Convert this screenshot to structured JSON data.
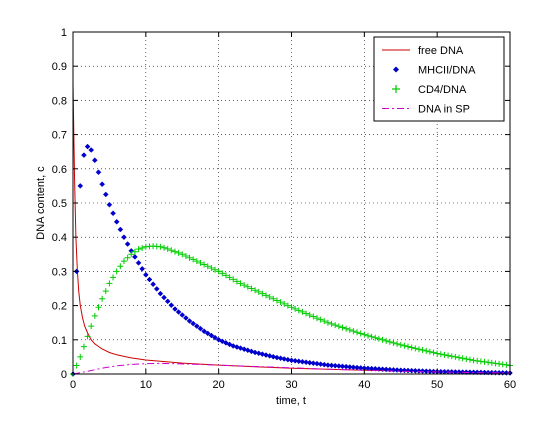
{
  "chart_data": {
    "type": "line",
    "title": "",
    "xlabel": "time, t",
    "ylabel": "DNA content, c",
    "xlim": [
      0,
      60
    ],
    "ylim": [
      0,
      1
    ],
    "xticks": [
      "0",
      "10",
      "20",
      "30",
      "40",
      "50",
      "60"
    ],
    "yticks": [
      "0",
      "0.1",
      "0.2",
      "0.3",
      "0.4",
      "0.5",
      "0.6",
      "0.7",
      "0.8",
      "0.9",
      "1"
    ],
    "grid": true,
    "legend_position": "top-right",
    "series": [
      {
        "name": "free DNA",
        "style": "solid-line",
        "color": "#cc0000",
        "x": [
          0,
          0.2,
          0.4,
          0.6,
          0.8,
          1.0,
          1.3,
          1.6,
          2.0,
          2.5,
          3,
          4,
          5,
          6,
          8,
          10,
          12,
          15,
          20,
          25,
          30,
          35,
          40,
          45,
          50,
          55,
          60
        ],
        "y": [
          0.85,
          0.58,
          0.4,
          0.3,
          0.24,
          0.2,
          0.165,
          0.14,
          0.12,
          0.1,
          0.088,
          0.073,
          0.063,
          0.056,
          0.047,
          0.041,
          0.037,
          0.032,
          0.026,
          0.021,
          0.017,
          0.014,
          0.011,
          0.009,
          0.007,
          0.006,
          0.005
        ]
      },
      {
        "name": "MHCII/DNA",
        "style": "diamond-markers",
        "color": "#0000cc",
        "x": [
          0,
          0.5,
          1,
          1.5,
          2,
          2.5,
          3,
          3.5,
          4,
          5,
          6,
          7,
          8,
          9,
          10,
          12,
          14,
          16,
          18,
          20,
          22,
          25,
          28,
          30,
          35,
          40,
          45,
          50,
          55,
          60
        ],
        "y": [
          0,
          0.3,
          0.55,
          0.64,
          0.665,
          0.655,
          0.625,
          0.59,
          0.555,
          0.495,
          0.445,
          0.4,
          0.36,
          0.325,
          0.29,
          0.235,
          0.19,
          0.155,
          0.125,
          0.1,
          0.082,
          0.063,
          0.048,
          0.04,
          0.026,
          0.017,
          0.011,
          0.007,
          0.005,
          0.003
        ]
      },
      {
        "name": "CD4/DNA",
        "style": "plus-markers",
        "color": "#00cc00",
        "x": [
          0,
          1,
          2,
          3,
          4,
          5,
          6,
          7,
          8,
          9,
          10,
          11,
          12,
          13,
          15,
          17,
          20,
          23,
          25,
          30,
          35,
          40,
          45,
          50,
          55,
          60
        ],
        "y": [
          0,
          0.05,
          0.11,
          0.17,
          0.22,
          0.265,
          0.3,
          0.33,
          0.35,
          0.365,
          0.372,
          0.374,
          0.372,
          0.366,
          0.35,
          0.33,
          0.3,
          0.265,
          0.245,
          0.195,
          0.15,
          0.115,
          0.085,
          0.06,
          0.04,
          0.025
        ]
      },
      {
        "name": "DNA in SP",
        "style": "dash-dot-line",
        "color": "#cc00cc",
        "x": [
          0,
          2,
          4,
          6,
          8,
          10,
          12,
          14,
          16,
          20,
          25,
          30,
          35,
          40,
          45,
          50,
          55,
          60
        ],
        "y": [
          0,
          0.008,
          0.017,
          0.024,
          0.028,
          0.03,
          0.031,
          0.03,
          0.029,
          0.026,
          0.022,
          0.018,
          0.014,
          0.011,
          0.008,
          0.006,
          0.004,
          0.003
        ]
      }
    ]
  }
}
